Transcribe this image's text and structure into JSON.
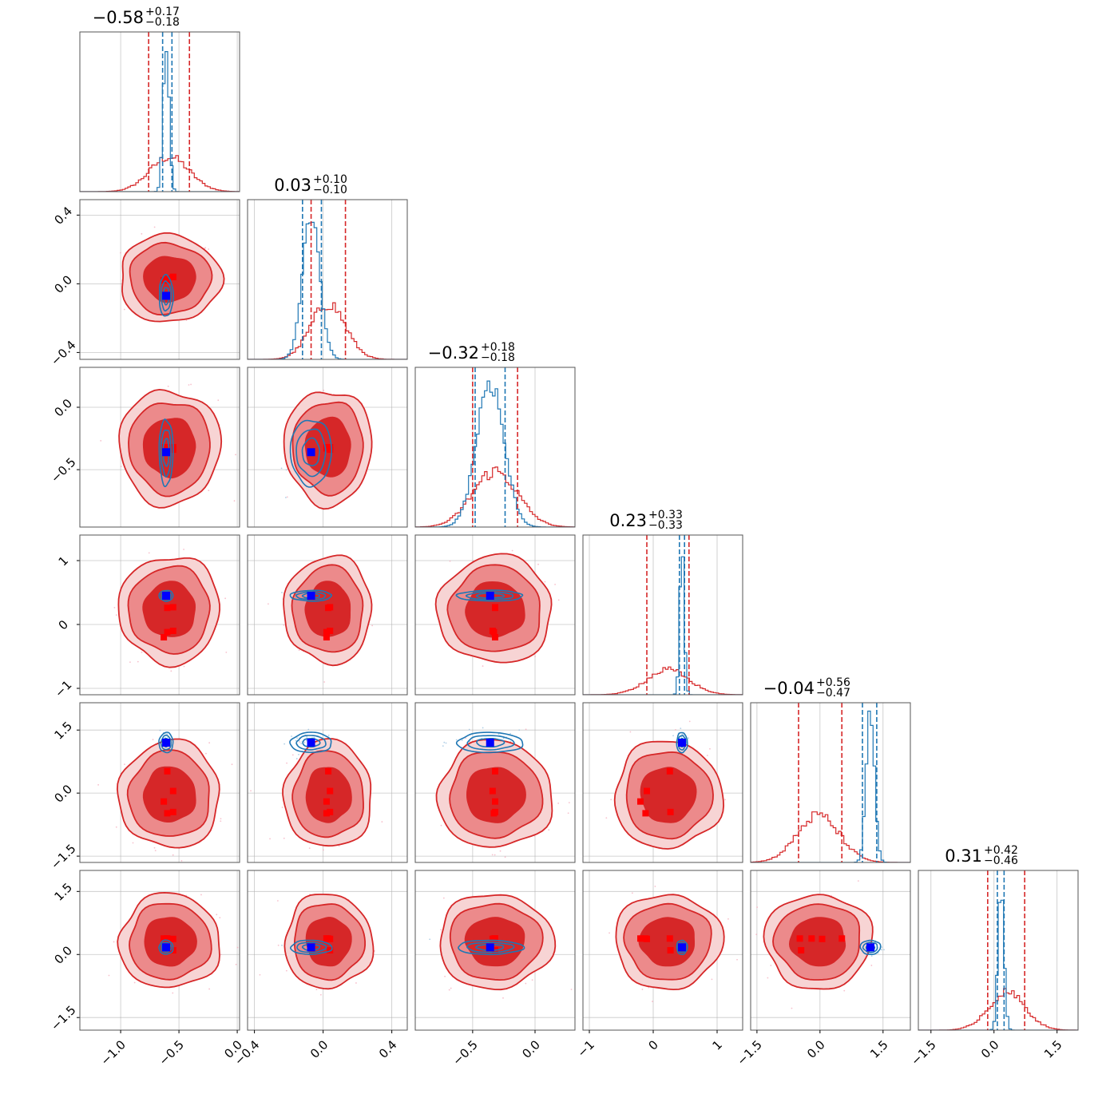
{
  "chart_data": {
    "type": "corner",
    "colors": {
      "red": "#d62728",
      "red_mid": "#ec8a8b",
      "red_light": "#f7d4d4",
      "blue": "#1f77b4",
      "marker_blue": "#0000ff",
      "marker_red": "#ff0000",
      "grid": "#b0b0b0"
    },
    "params": [
      {
        "title_main": "−0.58",
        "title_sup": "+0.17",
        "title_sub": "−0.18",
        "range": [
          -1.35,
          0.02
        ],
        "ticks": [
          {
            "v": -1.0,
            "label": "−1.0"
          },
          {
            "v": -0.5,
            "label": "−0.5"
          },
          {
            "v": 0.0,
            "label": "0.0"
          }
        ]
      },
      {
        "title_main": "0.03",
        "title_sup": "+0.10",
        "title_sub": "−0.10",
        "range": [
          -0.44,
          0.49
        ],
        "ticks": [
          {
            "v": -0.4,
            "label": "−0.4"
          },
          {
            "v": 0.0,
            "label": "0.0"
          },
          {
            "v": 0.4,
            "label": "0.4"
          }
        ]
      },
      {
        "title_main": "−0.32",
        "title_sup": "+0.18",
        "title_sub": "−0.18",
        "range": [
          -0.96,
          0.32
        ],
        "ticks": [
          {
            "v": -0.5,
            "label": "−0.5"
          },
          {
            "v": 0.0,
            "label": "0.0"
          }
        ]
      },
      {
        "title_main": "0.23",
        "title_sup": "+0.33",
        "title_sub": "−0.33",
        "range": [
          -1.1,
          1.4
        ],
        "ticks": [
          {
            "v": -1,
            "label": "−1"
          },
          {
            "v": 0,
            "label": "0"
          },
          {
            "v": 1,
            "label": "1"
          }
        ]
      },
      {
        "title_main": "−0.04",
        "title_sup": "+0.56",
        "title_sub": "−0.47",
        "range": [
          -1.65,
          2.15
        ],
        "ticks": [
          {
            "v": -1.5,
            "label": "−1.5"
          },
          {
            "v": 0.0,
            "label": "0.0"
          },
          {
            "v": 1.5,
            "label": "1.5"
          }
        ]
      },
      {
        "title_main": "0.31",
        "title_sup": "+0.42",
        "title_sub": "−0.46",
        "range": [
          -1.8,
          2.0
        ],
        "ticks": [
          {
            "v": -1.5,
            "label": "−1.5"
          },
          {
            "v": 0.0,
            "label": "0.0"
          },
          {
            "v": 1.5,
            "label": "1.5"
          }
        ]
      }
    ],
    "red_posterior": {
      "median": [
        -0.58,
        0.03,
        -0.32,
        0.23,
        -0.04,
        0.31
      ],
      "std": [
        0.17,
        0.1,
        0.18,
        0.33,
        0.5,
        0.44
      ],
      "quantile_lines": [
        [
          -0.76,
          -0.41
        ],
        [
          -0.07,
          0.13
        ],
        [
          -0.5,
          -0.14
        ],
        [
          -0.1,
          0.56
        ],
        [
          -0.51,
          0.52
        ],
        [
          -0.15,
          0.73
        ]
      ]
    },
    "blue_posterior": {
      "median": [
        -0.61,
        -0.07,
        -0.36,
        0.45,
        1.2,
        0.17
      ],
      "std": [
        0.025,
        0.05,
        0.11,
        0.035,
        0.1,
        0.07
      ],
      "quantile_lines": [
        [
          -0.64,
          -0.56
        ],
        [
          -0.12,
          -0.01
        ],
        [
          -0.48,
          -0.24
        ],
        [
          0.41,
          0.49
        ],
        [
          1.01,
          1.35
        ],
        [
          0.08,
          0.24
        ]
      ]
    },
    "red_markers": [
      {
        "pairs": [
          [
            1,
            0
          ],
          [
            0.025,
            -0.6
          ],
          [
            0.03,
            -0.65
          ],
          [
            0.05,
            -0.58
          ],
          [
            -0.05,
            -0.62
          ],
          [
            -0.03,
            -0.56
          ]
        ]
      },
      {
        "pairs": [
          [
            2,
            0
          ],
          [
            -0.3,
            -0.62
          ],
          [
            -0.35,
            -0.6
          ],
          [
            -0.33,
            -0.66
          ],
          [
            -0.35,
            -0.57
          ]
        ]
      },
      {
        "pairs": [
          [
            2,
            1
          ],
          [
            -0.3,
            0.02
          ],
          [
            -0.34,
            0.05
          ],
          [
            -0.36,
            0.0
          ]
        ]
      }
    ],
    "blue_marker": [
      -0.61,
      -0.07,
      -0.36,
      0.45,
      1.2,
      0.17
    ],
    "red_truth_points": [
      [
        -0.6,
        0.03,
        -0.32,
        0.26,
        0.52,
        0.38
      ],
      [
        -0.55,
        0.04,
        -0.34,
        -0.1,
        0.05,
        0.37
      ],
      [
        -0.63,
        0.02,
        -0.32,
        -0.2,
        -0.2,
        0.38
      ],
      [
        -0.55,
        0.04,
        -0.32,
        0.27,
        -0.45,
        0.1
      ],
      [
        -0.6,
        0.02,
        -0.33,
        -0.12,
        -0.48,
        0.38
      ]
    ]
  }
}
